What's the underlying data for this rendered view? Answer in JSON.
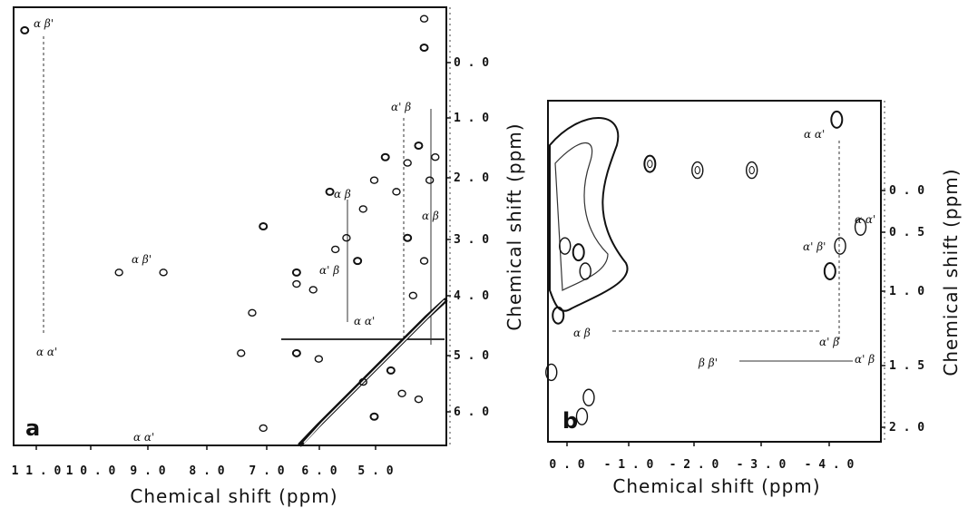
{
  "chart_data": [
    {
      "type": "scatter",
      "panel_label": "a",
      "xlabel": "Chemical shift (ppm)",
      "ylabel": "Chemical shift (ppm)",
      "x_ticks": [
        "11.0",
        "10.0",
        "9.0",
        "8.0",
        "7.0",
        "6.0",
        "5.0"
      ],
      "y_ticks": [
        "0.0",
        "1.0",
        "2.0",
        "3.0",
        "4.0",
        "5.0",
        "6.0"
      ],
      "xlim": [
        11.7,
        3.9
      ],
      "ylim": [
        -1.0,
        6.6
      ],
      "annotations": [
        "α β'",
        "α β'",
        "α α'",
        "α α'",
        "α' β",
        "α β",
        "α β",
        "α' β",
        "α α'"
      ],
      "peaks": [
        {
          "x": 11.5,
          "y": -0.6
        },
        {
          "x": 9.8,
          "y": 3.6
        },
        {
          "x": 9.0,
          "y": 3.6
        },
        {
          "x": 7.2,
          "y": 2.8
        },
        {
          "x": 7.4,
          "y": 4.3
        },
        {
          "x": 7.6,
          "y": 5.0
        },
        {
          "x": 6.6,
          "y": 3.6
        },
        {
          "x": 6.6,
          "y": 3.8
        },
        {
          "x": 6.3,
          "y": 3.9
        },
        {
          "x": 6.0,
          "y": 2.2
        },
        {
          "x": 5.9,
          "y": 3.2
        },
        {
          "x": 5.7,
          "y": 3.0
        },
        {
          "x": 5.5,
          "y": 3.4
        },
        {
          "x": 5.4,
          "y": 2.5
        },
        {
          "x": 5.2,
          "y": 2.0
        },
        {
          "x": 5.0,
          "y": 1.6
        },
        {
          "x": 4.8,
          "y": 2.2
        },
        {
          "x": 4.6,
          "y": 1.7
        },
        {
          "x": 4.4,
          "y": 1.4
        },
        {
          "x": 4.2,
          "y": 2.0
        },
        {
          "x": 4.1,
          "y": 1.6
        },
        {
          "x": 4.6,
          "y": 3.0
        },
        {
          "x": 4.3,
          "y": 3.4
        },
        {
          "x": 4.5,
          "y": 4.0
        },
        {
          "x": 6.6,
          "y": 5.0
        },
        {
          "x": 6.2,
          "y": 5.1
        },
        {
          "x": 5.4,
          "y": 5.5
        },
        {
          "x": 4.9,
          "y": 5.3
        },
        {
          "x": 4.7,
          "y": 5.7
        },
        {
          "x": 4.4,
          "y": 5.8
        },
        {
          "x": 5.2,
          "y": 6.1
        },
        {
          "x": 7.2,
          "y": 6.3
        },
        {
          "x": 4.3,
          "y": -0.8
        },
        {
          "x": 4.3,
          "y": -0.3
        }
      ]
    },
    {
      "type": "scatter",
      "panel_label": "b",
      "xlabel": "Chemical shift (ppm)",
      "ylabel": "Chemical shift (ppm)",
      "x_ticks": [
        "0.0",
        "-1.0",
        "-2.0",
        "-3.0",
        "-4.0"
      ],
      "y_ticks": [
        "0.0",
        "0.5",
        "1.0",
        "1.5",
        "2.0"
      ],
      "xlim": [
        0.6,
        -4.3
      ],
      "ylim": [
        -0.6,
        2.1
      ],
      "annotations": [
        "α α'",
        "α α'",
        "α' β'",
        "α β",
        "α' β",
        "β β'",
        "α' β"
      ],
      "peaks": [
        {
          "x": -0.9,
          "y": -0.1
        },
        {
          "x": -1.6,
          "y": -0.05
        },
        {
          "x": -2.4,
          "y": -0.05
        },
        {
          "x": -3.65,
          "y": -0.45
        },
        {
          "x": -4.0,
          "y": 0.4
        },
        {
          "x": -3.7,
          "y": 0.55
        },
        {
          "x": -3.55,
          "y": 0.75
        },
        {
          "x": 0.0,
          "y": 1.75
        },
        {
          "x": 0.1,
          "y": 1.9
        },
        {
          "x": 0.45,
          "y": 1.1
        },
        {
          "x": 0.55,
          "y": 1.55
        },
        {
          "x": 0.35,
          "y": 0.55
        },
        {
          "x": 0.15,
          "y": 0.6
        },
        {
          "x": 0.05,
          "y": 0.75
        }
      ]
    }
  ]
}
